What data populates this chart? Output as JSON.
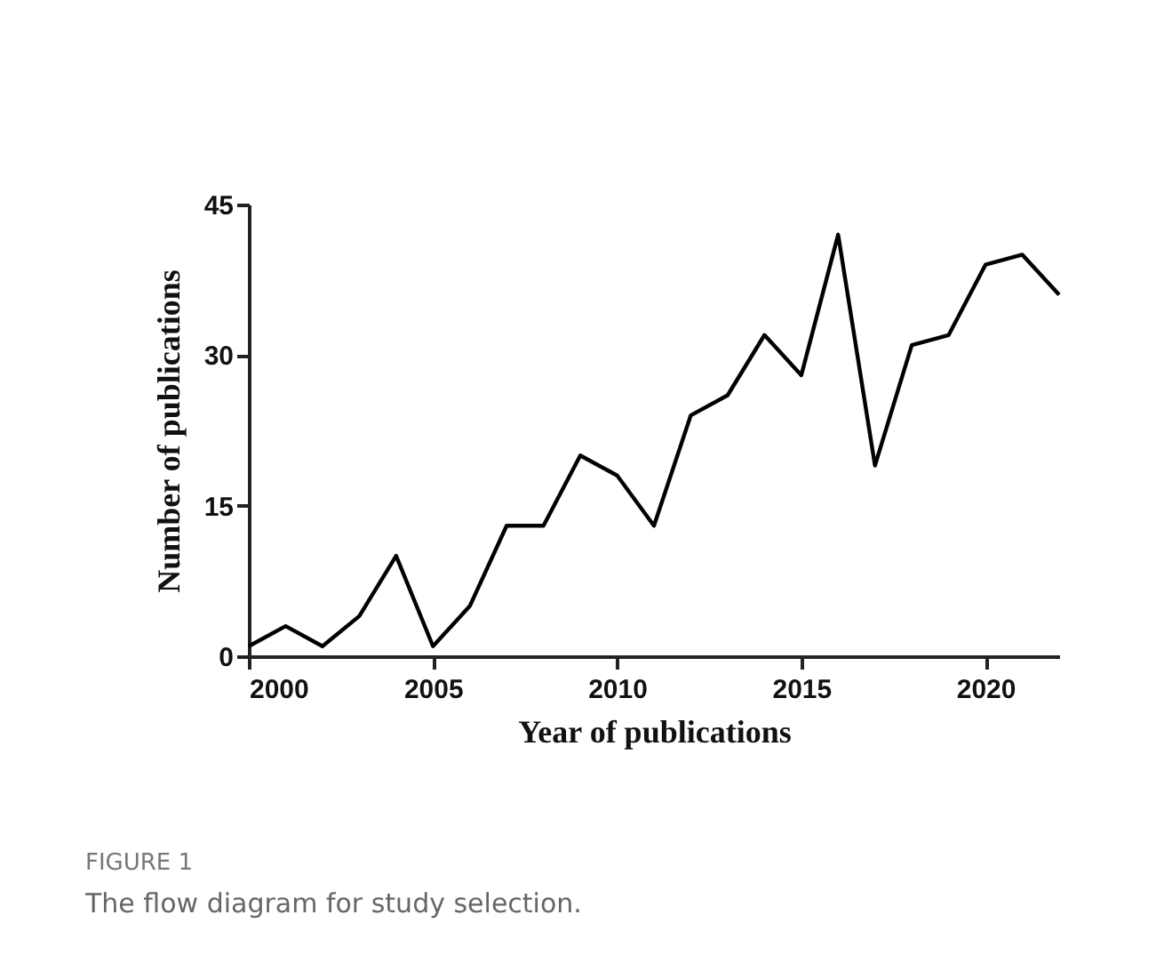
{
  "chart_data": {
    "type": "line",
    "xlabel": "Year of publications",
    "ylabel": "Number of publications",
    "x": [
      2000,
      2001,
      2002,
      2003,
      2004,
      2005,
      2006,
      2007,
      2008,
      2009,
      2010,
      2011,
      2012,
      2013,
      2014,
      2015,
      2016,
      2017,
      2018,
      2019,
      2020,
      2021,
      2022
    ],
    "series": [
      {
        "color": "#000000",
        "values": [
          1,
          3,
          1,
          4,
          10,
          1,
          5,
          13,
          13,
          20,
          18,
          13,
          24,
          26,
          32,
          28,
          42,
          19,
          31,
          32,
          39,
          40,
          36
        ]
      }
    ],
    "xlim": [
      2000,
      2022
    ],
    "xticks": [
      2000,
      2005,
      2010,
      2015,
      2020
    ],
    "ylim": [
      0,
      45
    ],
    "yticks": [
      0,
      15,
      30,
      45
    ],
    "grid": false,
    "marker": "none",
    "line_style": "solid",
    "annotations": [
      "FIGURE 1",
      "The flow diagram for study selection."
    ]
  }
}
